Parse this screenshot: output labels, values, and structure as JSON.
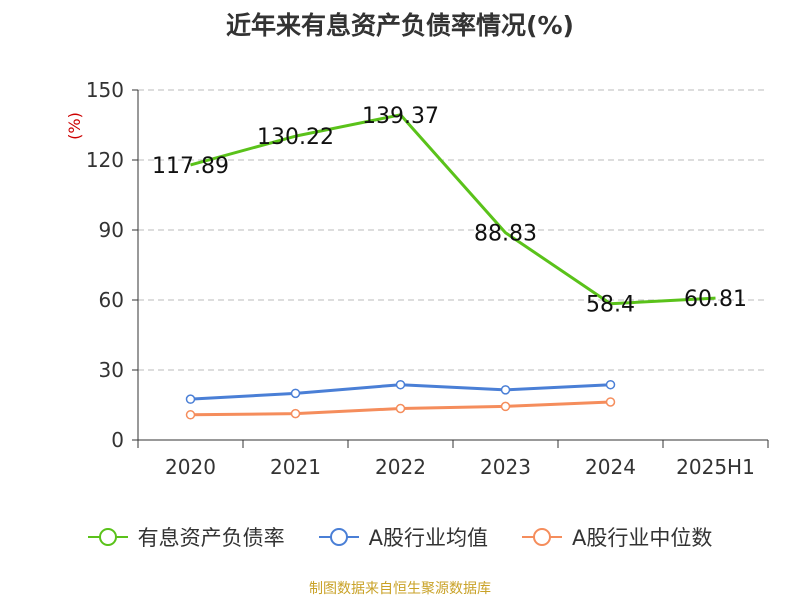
{
  "title": "近年来有息资产负债率情况(%)",
  "source": "制图数据来自恒生聚源数据库",
  "colors": {
    "series_0": "#5ac21a",
    "series_1": "#4a7fd6",
    "series_2": "#f58d5c",
    "grid": "#bbbbbb",
    "axis": "#333333",
    "unit": "#cc0000"
  },
  "chart_data": {
    "type": "line",
    "title": "近年来有息资产负债率情况(%)",
    "ylabel": "(%)",
    "ylim": [
      0,
      150
    ],
    "yticks": [
      0,
      30,
      60,
      90,
      120,
      150
    ],
    "grid": true,
    "legend_position": "bottom",
    "categories": [
      "2020",
      "2021",
      "2022",
      "2023",
      "2024",
      "2025H1"
    ],
    "series": [
      {
        "name": "有息资产负债率",
        "values": [
          117.89,
          130.22,
          139.37,
          88.83,
          58.4,
          60.81
        ],
        "labels": [
          "117.89",
          "130.22",
          "139.37",
          "88.83",
          "58.4",
          "60.81"
        ],
        "markers": false
      },
      {
        "name": "A股行业均值",
        "values": [
          17.5,
          20,
          23.7,
          21.5,
          23.7,
          null
        ],
        "markers": true
      },
      {
        "name": "A股行业中位数",
        "values": [
          10.8,
          11.3,
          13.5,
          14.4,
          16.3,
          null
        ],
        "markers": true
      }
    ]
  }
}
